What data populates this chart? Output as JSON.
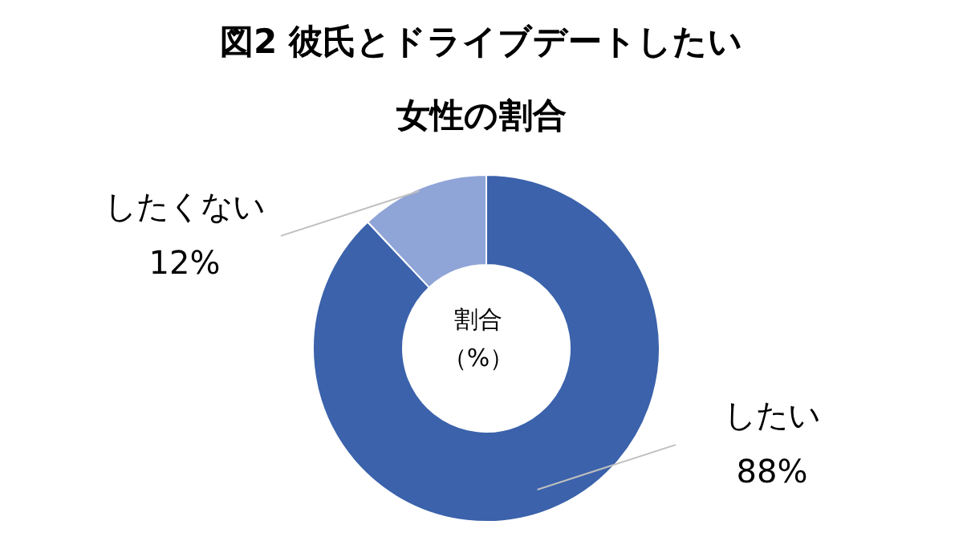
{
  "chart_data": {
    "type": "donut",
    "title": "図2 彼氏とドライブデートしたい女性の割合",
    "categories": [
      "したい",
      "したくない"
    ],
    "values": [
      88,
      12
    ],
    "colors": [
      "#3b62ab",
      "#8fa4d7"
    ],
    "value_labels": [
      "88%",
      "12%"
    ],
    "annotations": [
      "割合",
      "（%）"
    ]
  }
}
